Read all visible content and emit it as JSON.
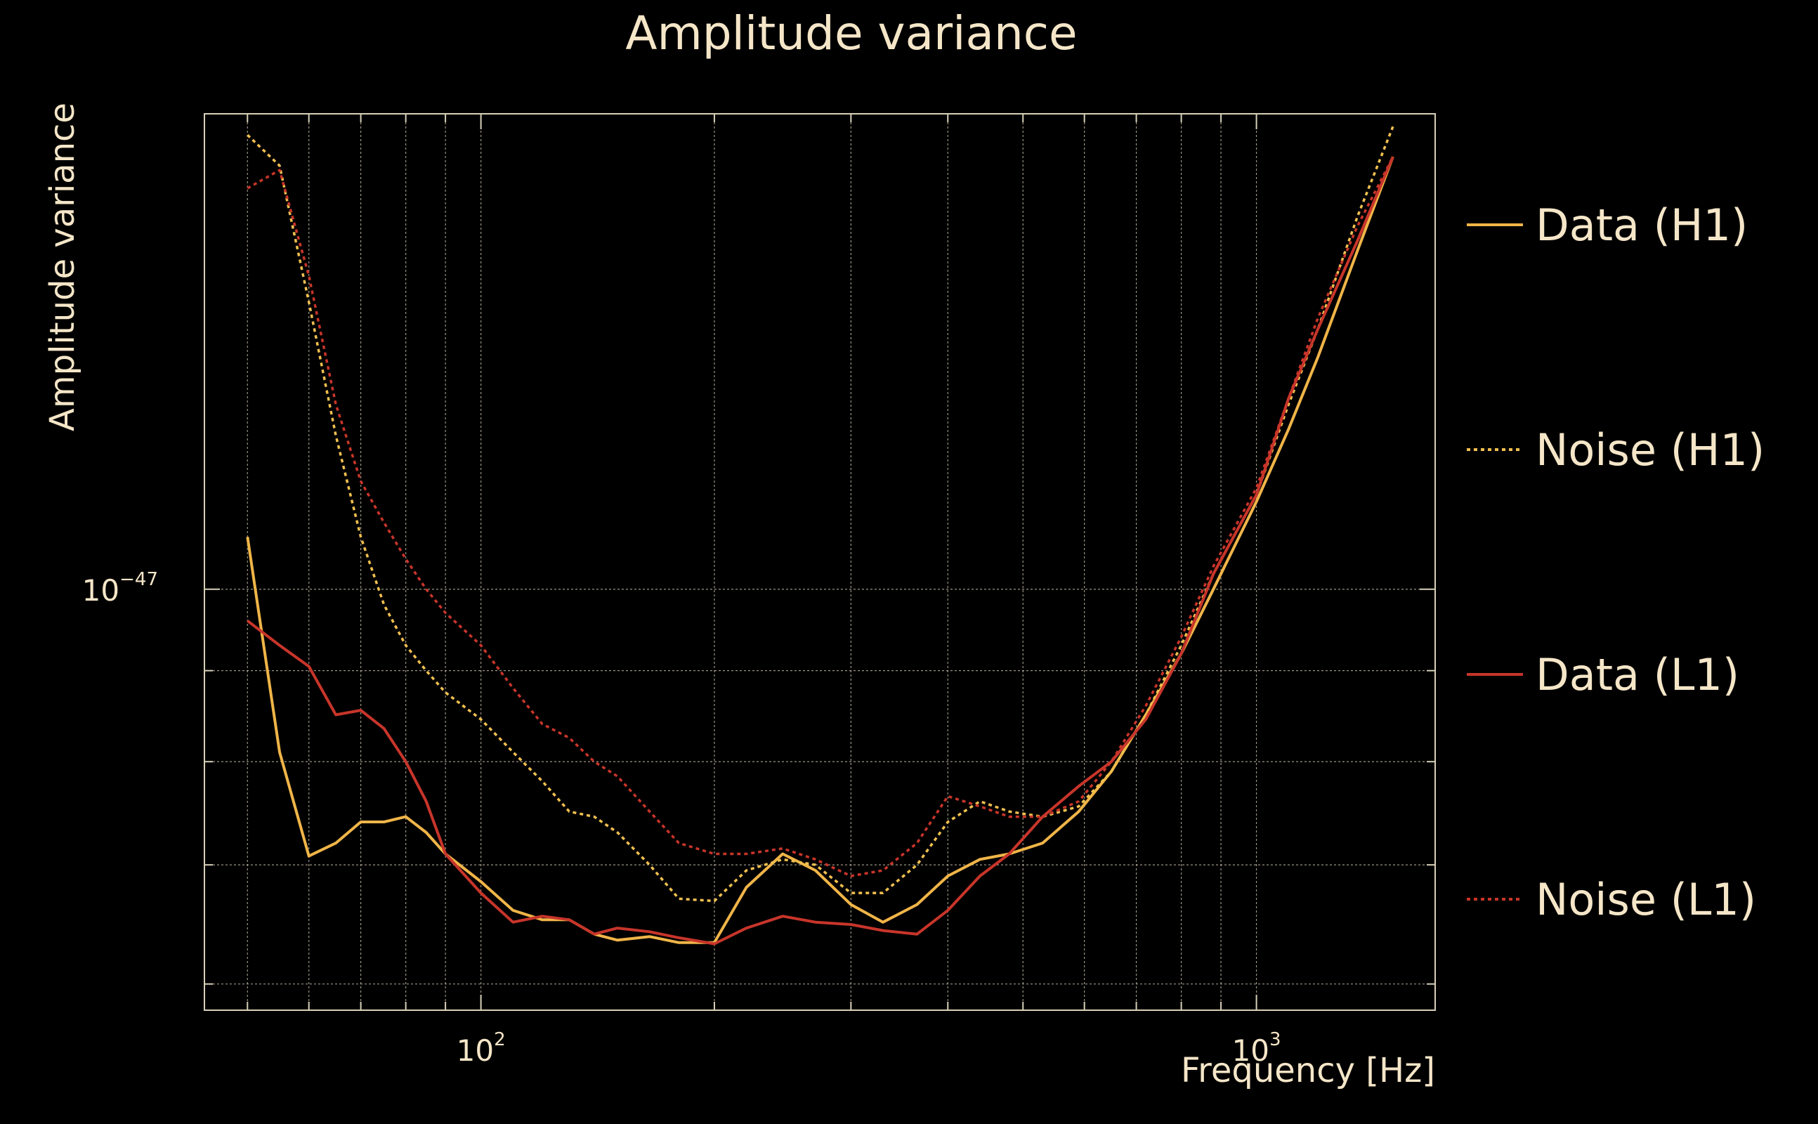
{
  "chart_data": {
    "type": "line",
    "title": "Amplitude variance",
    "xlabel": "Frequency [Hz]",
    "ylabel": "Amplitude variance",
    "x_scale": "log",
    "y_scale": "log",
    "xlim": [
      44,
      1700
    ],
    "ylim": [
      5.8e-48,
      1.85e-47
    ],
    "x_ticks": [
      {
        "base": "10",
        "exp": "2",
        "value": 100
      },
      {
        "base": "10",
        "exp": "3",
        "value": 1000
      }
    ],
    "y_ticks": [
      {
        "base": "10",
        "exp": "−47",
        "value": 1e-47
      }
    ],
    "grid": true,
    "legend_position": "right",
    "x": [
      50,
      55,
      60,
      65,
      70,
      75,
      80,
      85,
      90,
      100,
      110,
      120,
      130,
      140,
      150,
      165,
      180,
      200,
      220,
      245,
      270,
      300,
      330,
      365,
      400,
      440,
      480,
      530,
      590,
      650,
      720,
      800,
      880,
      1000,
      1100,
      1200,
      1350,
      1500
    ],
    "series": [
      {
        "name": "Data (H1)",
        "color": "#f0b548",
        "style": "solid",
        "values": [
          1.07e-47,
          8.1e-48,
          7.08e-48,
          7.2e-48,
          7.4e-48,
          7.4e-48,
          7.45e-48,
          7.3e-48,
          7.1e-48,
          6.85e-48,
          6.6e-48,
          6.52e-48,
          6.52e-48,
          6.4e-48,
          6.35e-48,
          6.38e-48,
          6.33e-48,
          6.33e-48,
          6.8e-48,
          7.1e-48,
          6.95e-48,
          6.65e-48,
          6.5e-48,
          6.65e-48,
          6.9e-48,
          7.05e-48,
          7.1e-48,
          7.2e-48,
          7.5e-48,
          7.9e-48,
          8.5e-48,
          9.2e-48,
          1e-47,
          1.12e-47,
          1.23e-47,
          1.35e-47,
          1.55e-47,
          1.75e-47
        ]
      },
      {
        "name": "Noise (H1)",
        "color": "#f0c050",
        "style": "dotted",
        "values": [
          1.8e-47,
          1.73e-47,
          1.45e-47,
          1.22e-47,
          1.07e-47,
          9.8e-48,
          9.3e-48,
          9e-48,
          8.75e-48,
          8.45e-48,
          8.1e-48,
          7.8e-48,
          7.5e-48,
          7.45e-48,
          7.3e-48,
          7e-48,
          6.7e-48,
          6.68e-48,
          6.95e-48,
          7.05e-48,
          7e-48,
          6.75e-48,
          6.75e-48,
          7e-48,
          7.4e-48,
          7.6e-48,
          7.5e-48,
          7.45e-48,
          7.55e-48,
          7.9e-48,
          8.5e-48,
          9.3e-48,
          1.02e-47,
          1.13e-47,
          1.27e-47,
          1.4e-47,
          1.62e-47,
          1.82e-47
        ]
      },
      {
        "name": "Data (L1)",
        "color": "#c8352a",
        "style": "solid",
        "values": [
          9.6e-48,
          9.3e-48,
          9.05e-48,
          8.5e-48,
          8.55e-48,
          8.35e-48,
          8e-48,
          7.6e-48,
          7.1e-48,
          6.75e-48,
          6.5e-48,
          6.55e-48,
          6.52e-48,
          6.4e-48,
          6.45e-48,
          6.42e-48,
          6.37e-48,
          6.32e-48,
          6.45e-48,
          6.55e-48,
          6.5e-48,
          6.48e-48,
          6.43e-48,
          6.4e-48,
          6.6e-48,
          6.9e-48,
          7.1e-48,
          7.45e-48,
          7.75e-48,
          8e-48,
          8.45e-48,
          9.2e-48,
          1.02e-47,
          1.13e-47,
          1.28e-47,
          1.4e-47,
          1.57e-47,
          1.75e-47
        ]
      },
      {
        "name": "Noise (L1)",
        "color": "#c8352a",
        "style": "dotted",
        "values": [
          1.68e-47,
          1.72e-47,
          1.5e-47,
          1.27e-47,
          1.15e-47,
          1.09e-47,
          1.04e-47,
          1e-47,
          9.7e-48,
          9.3e-48,
          8.8e-48,
          8.4e-48,
          8.25e-48,
          8e-48,
          7.85e-48,
          7.5e-48,
          7.2e-48,
          7.1e-48,
          7.1e-48,
          7.15e-48,
          7.05e-48,
          6.9e-48,
          6.95e-48,
          7.2e-48,
          7.65e-48,
          7.55e-48,
          7.45e-48,
          7.45e-48,
          7.6e-48,
          8e-48,
          8.6e-48,
          9.4e-48,
          1.03e-47,
          1.14e-47,
          1.28e-47,
          1.42e-47,
          1.6e-47,
          1.75e-47
        ]
      }
    ]
  }
}
